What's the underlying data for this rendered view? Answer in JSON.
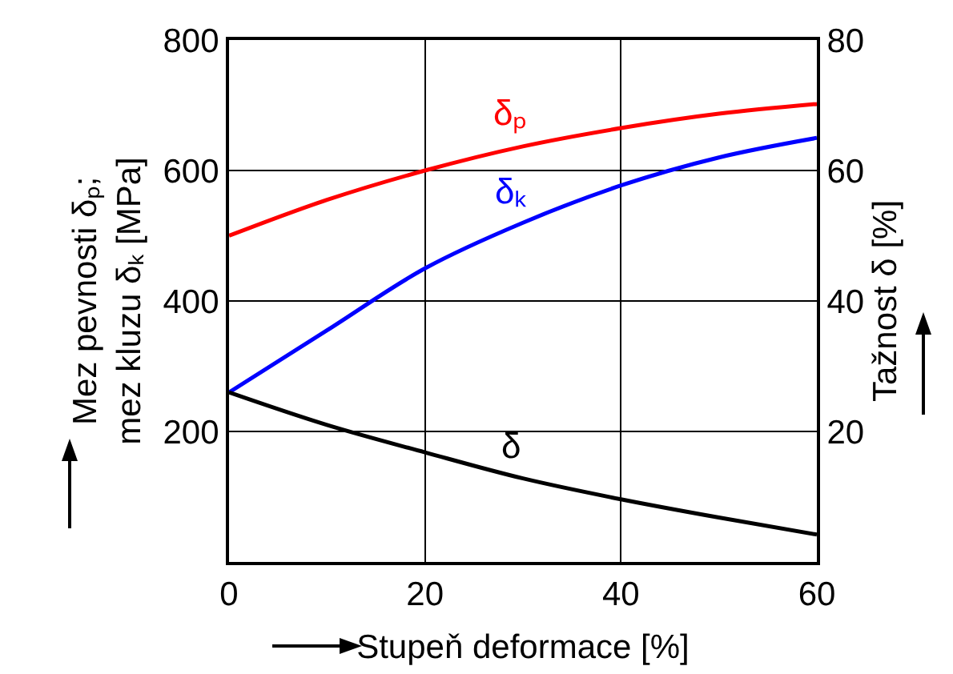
{
  "chart_data": {
    "type": "line",
    "xlabel": "Stupeň deformace [%]",
    "ylabel": "Mez pevnosti δₚ;\nmez kluzu δₖ [MPa]",
    "y2label": "Tažnost δ [%]",
    "x": [
      0,
      10,
      20,
      30,
      40,
      50,
      60
    ],
    "series": [
      {
        "name": "δₚ",
        "color": "#ff0000",
        "values": [
          500,
          555,
          600,
          637,
          665,
          687,
          702
        ]
      },
      {
        "name": "δₖ",
        "color": "#0000ff",
        "values": [
          260,
          355,
          450,
          520,
          577,
          620,
          650
        ]
      },
      {
        "name": "δ",
        "color": "#000000",
        "axis": "y2",
        "values": [
          26,
          21,
          16.8,
          12.8,
          9.6,
          6.8,
          4.2
        ]
      }
    ],
    "xlim": [
      0,
      60
    ],
    "xticks": [
      0,
      20,
      40,
      60
    ],
    "ylim": [
      0,
      800
    ],
    "yticks": [
      200,
      400,
      600,
      800
    ],
    "y2lim": [
      0,
      80
    ],
    "y2ticks": [
      20,
      40,
      60,
      80
    ],
    "grid": true,
    "legend": false,
    "marker": "none",
    "line_style": "solid"
  }
}
